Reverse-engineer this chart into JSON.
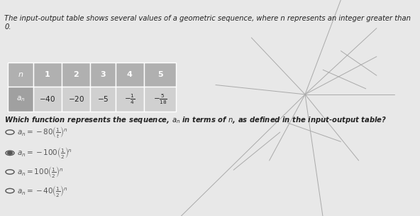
{
  "title": "The input-output table shows several values of a geometric sequence, where n represents an integer greater than 0.",
  "table_headers": [
    "n",
    "1",
    "2",
    "3",
    "4",
    "5"
  ],
  "table_row_label": "a_n",
  "table_values": [
    "-40",
    "-20",
    "-5",
    "-\\frac{1}{4}",
    "-\\frac{5}{18}"
  ],
  "question": "Which function represents the sequence, $a_n$ in terms of $n$, as defined in the input-output table?",
  "options": [
    "$a_n = -80\\left(\\frac{1}{t}\\right)^n$",
    "$a_n = -100\\left(\\frac{1}{2}\\right)^n$",
    "$a_n = 100\\left(\\frac{1}{2}\\right)^n$",
    "$a_n = -40\\left(\\frac{1}{2}\\right)^n$"
  ],
  "table_header_bg": "#b0b0b0",
  "table_row_bg": "#a0a0a0",
  "table_cell_bg": "#d0d0d0",
  "bg_color": "#e8e8e8",
  "text_color": "#222222",
  "option_text_color": "#555555",
  "selected_option_index": 1,
  "crack_color": "#aaaaaa"
}
